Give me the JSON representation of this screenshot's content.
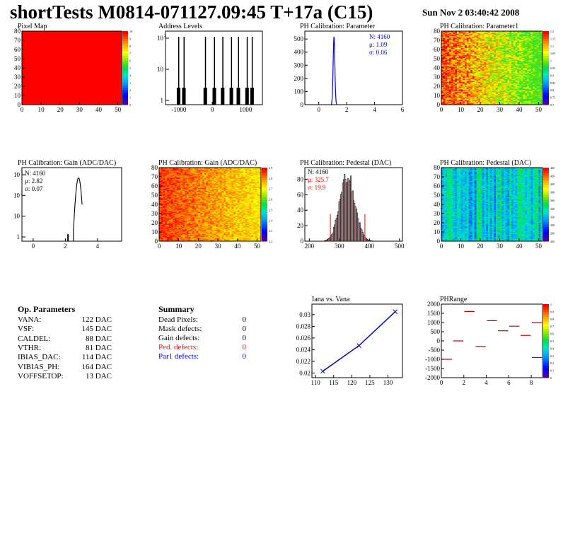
{
  "header": {
    "title": "shortTests M0814-071127.09:45 T+17a (C15)",
    "date": "Sun Nov  2 03:40:42 2008"
  },
  "op_parameters": {
    "title": "Op. Parameters",
    "rows": [
      {
        "label": "VANA:",
        "value": "122 DAC"
      },
      {
        "label": "VSF:",
        "value": "145 DAC"
      },
      {
        "label": "CALDEL:",
        "value": "88 DAC"
      },
      {
        "label": "VTHR:",
        "value": "81 DAC"
      },
      {
        "label": "IBIAS_DAC:",
        "value": "114 DAC"
      },
      {
        "label": "VIBIAS_PH:",
        "value": "164 DAC"
      },
      {
        "label": "VOFFSETOP:",
        "value": "13 DAC"
      }
    ]
  },
  "summary": {
    "title": "Summary",
    "rows": [
      {
        "label": "Dead Pixels:",
        "value": "0",
        "color": "#000000"
      },
      {
        "label": "Mask defects:",
        "value": "0",
        "color": "#000000"
      },
      {
        "label": "Gain defects:",
        "value": "0",
        "color": "#000000"
      },
      {
        "label": "Ped. defects:",
        "value": "0",
        "color": "#ff0000"
      },
      {
        "label": "Par1 defects:",
        "value": "0",
        "color": "#0000ff"
      }
    ]
  },
  "chart_data": [
    {
      "type": "heatmap",
      "title": "Pixel Map",
      "x_ticks": [
        0,
        10,
        20,
        30,
        40,
        50
      ],
      "y_ticks": [
        0,
        10,
        20,
        30,
        40,
        50,
        60,
        70,
        80
      ],
      "xlim": [
        0,
        52
      ],
      "ylim": [
        0,
        80
      ],
      "fill": "uniform",
      "color": "#ff0000",
      "z_range": [
        0,
        10
      ]
    },
    {
      "type": "bar",
      "title": "Address Levels",
      "x_ticks": [
        "-1000",
        "0",
        "1000"
      ],
      "xlim": [
        -1400,
        1500
      ],
      "log_y": true,
      "y_ticks": [
        "1",
        "10",
        "10^2"
      ],
      "peaks_x": [
        -1020,
        -860,
        -220,
        50,
        300,
        560,
        770,
        1030,
        1180
      ],
      "peak_height": 350
    },
    {
      "type": "bar",
      "title": "PH Calibration: Parameter",
      "x_ticks": [
        0,
        2,
        4,
        6
      ],
      "xlim": [
        -1,
        6
      ],
      "y_ticks": [
        0,
        100,
        200,
        300,
        400,
        500
      ],
      "ylim": [
        0,
        560
      ],
      "stats": {
        "N": "N: 4160",
        "mean": "μ: 1.09",
        "sigma": "σ: 0.06"
      },
      "stats_color": "#0000ff",
      "peak_x": 1.09,
      "peak_y": 520
    },
    {
      "type": "heatmap",
      "title": "PH Calibration: Parameter1",
      "x_ticks": [
        0,
        10,
        20,
        30,
        40,
        50
      ],
      "y_ticks": [
        0,
        10,
        20,
        30,
        40,
        50,
        60,
        70,
        80
      ],
      "xlim": [
        0,
        52
      ],
      "ylim": [
        0,
        80
      ],
      "z_range": [
        0.7,
        1.2
      ]
    },
    {
      "type": "bar",
      "title": "PH Calibration: Gain (ADC/DAC)",
      "x_ticks": [
        0,
        2,
        4
      ],
      "xlim": [
        -0.7,
        5.5
      ],
      "log_y": true,
      "y_ticks": [
        "1",
        "10",
        "10^2",
        "10^3"
      ],
      "stats": {
        "N": "N: 4160",
        "mean": "μ: 2.82",
        "sigma": "σ: 0.07"
      },
      "stats_color": "#000000",
      "peak_x": 2.82,
      "peak_y": 700
    },
    {
      "type": "heatmap",
      "title": "PH Calibration: Gain (ADC/DAC)",
      "x_ticks": [
        0,
        10,
        20,
        30,
        40,
        50
      ],
      "y_ticks": [
        0,
        10,
        20,
        30,
        40,
        50,
        60,
        70,
        80
      ],
      "xlim": [
        0,
        52
      ],
      "ylim": [
        0,
        80
      ],
      "z_range": [
        2.2,
        2.9
      ]
    },
    {
      "type": "bar",
      "title": "PH Calibration: Pedestal (DAC)",
      "x_ticks": [
        200,
        300,
        400,
        500
      ],
      "xlim": [
        185,
        510
      ],
      "y_ticks": [
        0,
        20,
        40,
        60,
        80
      ],
      "ylim": [
        0,
        95
      ],
      "stats": {
        "N": "N: 4160",
        "mean": "μ: 325.7",
        "sigma": "σ: 19.9"
      },
      "stats_colors": [
        "#000000",
        "#ff0000",
        "#ff0000"
      ],
      "mean": 325.7,
      "sigma": 19.9,
      "cut_lines": [
        270,
        385
      ]
    },
    {
      "type": "heatmap",
      "title": "PH Calibration: Pedestal (DAC)",
      "x_ticks": [
        0,
        10,
        20,
        30,
        40,
        50
      ],
      "y_ticks": [
        0,
        10,
        20,
        30,
        40,
        50,
        60,
        70,
        80
      ],
      "xlim": [
        0,
        52
      ],
      "ylim": [
        0,
        80
      ],
      "z_range": [
        260,
        440
      ]
    },
    {
      "type": "line",
      "title": "Iana vs. Vana",
      "x": [
        112,
        122,
        132
      ],
      "y": [
        0.0203,
        0.0247,
        0.0305
      ],
      "x_ticks": [
        110,
        115,
        120,
        125,
        130
      ],
      "y_ticks": [
        0.02,
        0.022,
        0.024,
        0.026,
        0.028,
        0.03
      ],
      "xlim": [
        109,
        134
      ],
      "ylim": [
        0.0192,
        0.0318
      ],
      "color": "#0000cc"
    },
    {
      "type": "scatter",
      "title": "PHRange",
      "x_ticks": [
        0,
        2,
        4,
        6,
        8
      ],
      "xlim": [
        0,
        9
      ],
      "ylim": [
        -2000,
        2000
      ],
      "y_ticks": [
        "2000",
        "1500",
        "1000",
        "500",
        "0",
        "-500",
        "-1000",
        "-1500",
        "-2000"
      ],
      "segments": [
        {
          "x": 0,
          "y": -1000
        },
        {
          "x": 1,
          "y": 0
        },
        {
          "x": 2,
          "y": 1600
        },
        {
          "x": 3,
          "y": -300
        },
        {
          "x": 4,
          "y": 1100
        },
        {
          "x": 5,
          "y": 550
        },
        {
          "x": 6,
          "y": 800
        },
        {
          "x": 7,
          "y": 300
        },
        {
          "x": 8,
          "y": 1000
        },
        {
          "x": 8,
          "y": -900
        }
      ],
      "color": "#cc0000",
      "z_range": [
        0,
        1
      ]
    }
  ]
}
